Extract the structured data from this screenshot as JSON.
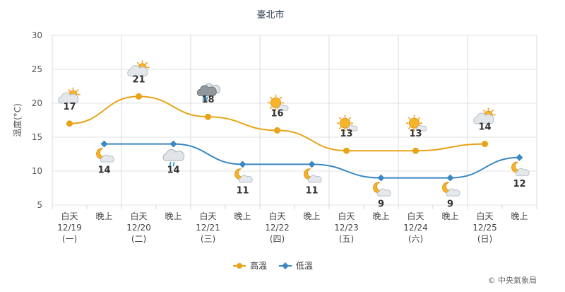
{
  "chart_data": {
    "type": "line",
    "title": "臺北市",
    "ylabel": "溫度(°C)",
    "ylim": [
      5,
      30
    ],
    "yticks": [
      5,
      10,
      15,
      20,
      25,
      30
    ],
    "grid": true,
    "legend_position": "bottom",
    "categories": [
      {
        "period": "白天",
        "date": "12/19",
        "weekday": "(一)",
        "holiday": false
      },
      {
        "period": "晚上",
        "date": "",
        "weekday": "",
        "holiday": false
      },
      {
        "period": "白天",
        "date": "12/20",
        "weekday": "(二)",
        "holiday": false
      },
      {
        "period": "晚上",
        "date": "",
        "weekday": "",
        "holiday": false
      },
      {
        "period": "白天",
        "date": "12/21",
        "weekday": "(三)",
        "holiday": false
      },
      {
        "period": "晚上",
        "date": "",
        "weekday": "",
        "holiday": false
      },
      {
        "period": "白天",
        "date": "12/22",
        "weekday": "(四)",
        "holiday": false
      },
      {
        "period": "晚上",
        "date": "",
        "weekday": "",
        "holiday": false
      },
      {
        "period": "白天",
        "date": "12/23",
        "weekday": "(五)",
        "holiday": false
      },
      {
        "period": "晚上",
        "date": "",
        "weekday": "",
        "holiday": false
      },
      {
        "period": "白天",
        "date": "12/24",
        "weekday": "(六)",
        "holiday": true
      },
      {
        "period": "晚上",
        "date": "",
        "weekday": "",
        "holiday": false
      },
      {
        "period": "白天",
        "date": "12/25",
        "weekday": "(日)",
        "holiday": true
      },
      {
        "period": "晚上",
        "date": "",
        "weekday": "",
        "holiday": false
      }
    ],
    "series": [
      {
        "name": "高溫",
        "color": "#e8a317",
        "points": [
          {
            "index": 0,
            "value": 17,
            "icon": "partly-cloudy-day-icon"
          },
          {
            "index": 2,
            "value": 21,
            "icon": "partly-cloudy-day-icon"
          },
          {
            "index": 4,
            "value": 18,
            "icon": "cloudy-rain-icon"
          },
          {
            "index": 6,
            "value": 16,
            "icon": "sunny-cloud-icon"
          },
          {
            "index": 8,
            "value": 13,
            "icon": "sunny-cloud-icon"
          },
          {
            "index": 10,
            "value": 13,
            "icon": "sunny-cloud-icon"
          },
          {
            "index": 12,
            "value": 14,
            "icon": "partly-cloudy-day-icon"
          }
        ]
      },
      {
        "name": "低溫",
        "color": "#3a87c1",
        "points": [
          {
            "index": 1,
            "value": 14,
            "icon": "moon-cloud-icon"
          },
          {
            "index": 3,
            "value": 14,
            "icon": "cloudy-rain-night-icon"
          },
          {
            "index": 5,
            "value": 11,
            "icon": "moon-cloud-icon"
          },
          {
            "index": 7,
            "value": 11,
            "icon": "moon-cloud-icon"
          },
          {
            "index": 9,
            "value": 9,
            "icon": "moon-cloud-icon"
          },
          {
            "index": 11,
            "value": 9,
            "icon": "moon-cloud-icon"
          },
          {
            "index": 13,
            "value": 12,
            "icon": "moon-cloud-icon"
          }
        ]
      }
    ],
    "holiday_color": "#b5451b",
    "credit": "© 中央氣象局"
  }
}
